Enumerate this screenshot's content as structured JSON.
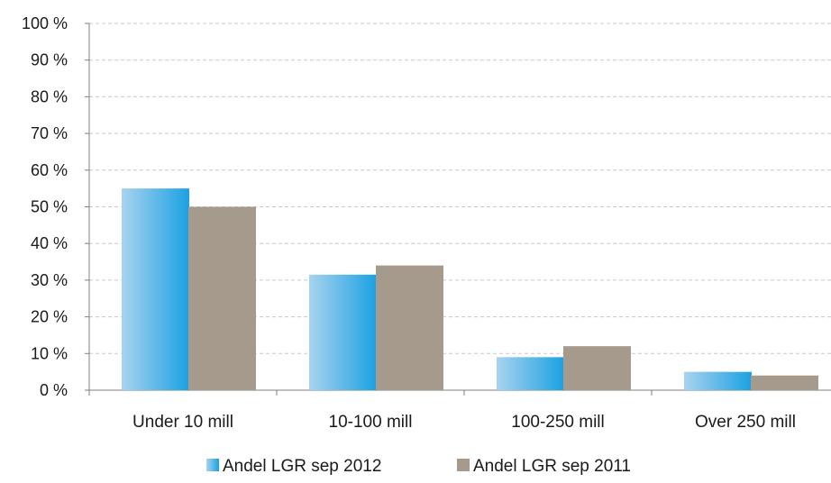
{
  "chart_data": {
    "type": "bar",
    "title": "",
    "xlabel": "",
    "ylabel": "",
    "categories": [
      "Under 10 mill",
      "10-100 mill",
      "100-250 mill",
      "Over 250 mill"
    ],
    "series": [
      {
        "name": "Andel LGR sep 2012",
        "values": [
          55,
          31.5,
          9,
          5
        ],
        "color": "#1ba1e2",
        "color_light": "#a8d3ef"
      },
      {
        "name": "Andel LGR sep 2011",
        "values": [
          50,
          34,
          12,
          4
        ],
        "color": "#a69a8c"
      }
    ],
    "ylim": [
      0,
      100
    ],
    "yticks": [
      0,
      10,
      20,
      30,
      40,
      50,
      60,
      70,
      80,
      90,
      100
    ],
    "ytick_labels": [
      "0 %",
      "10 %",
      "20 %",
      "30 %",
      "40 %",
      "50 %",
      "60 %",
      "70 %",
      "80 %",
      "90 %",
      "100 %"
    ],
    "grid": true,
    "grid_style": "dashed",
    "legend_position": "bottom"
  }
}
